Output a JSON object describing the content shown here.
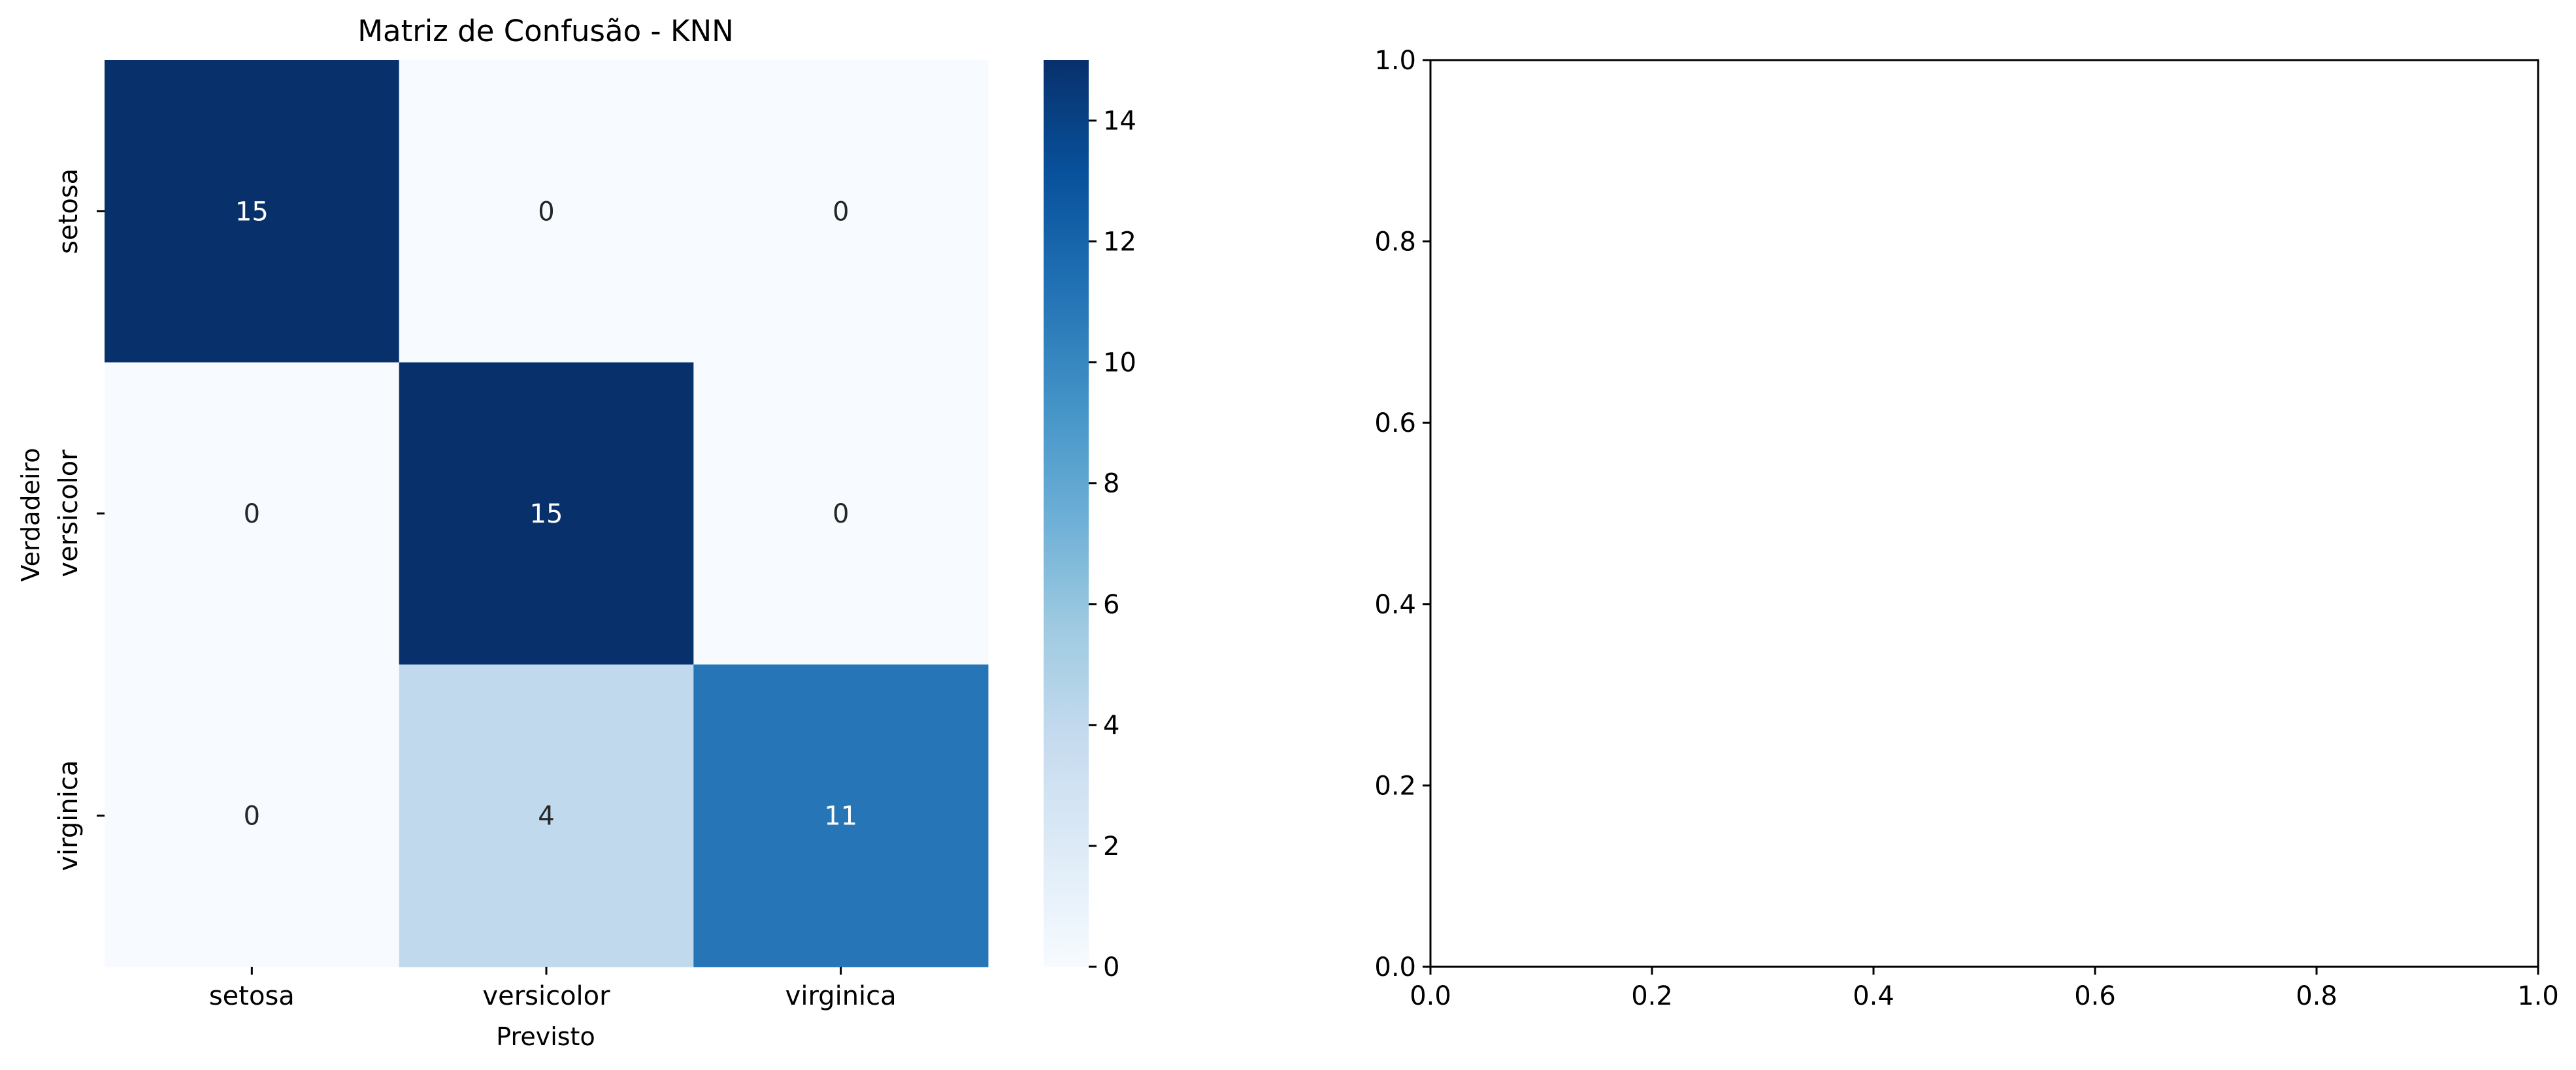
{
  "chart_data": [
    {
      "type": "heatmap",
      "title": "Matriz de Confusão - KNN",
      "xlabel": "Previsto",
      "ylabel": "Verdadeiro",
      "x_categories": [
        "setosa",
        "versicolor",
        "virginica"
      ],
      "y_categories": [
        "setosa",
        "versicolor",
        "virginica"
      ],
      "values": [
        [
          15,
          0,
          0
        ],
        [
          0,
          15,
          0
        ],
        [
          0,
          4,
          11
        ]
      ],
      "colormap": "Blues",
      "colormap_stops": [
        "#f7fbff",
        "#deebf7",
        "#c6dbef",
        "#9ecae1",
        "#6baed6",
        "#4292c6",
        "#2171b5",
        "#08519c",
        "#08306b"
      ],
      "colorbar": {
        "range": [
          0,
          15
        ],
        "ticks": [
          "0",
          "2",
          "4",
          "6",
          "8",
          "10",
          "12",
          "14"
        ]
      },
      "annotations": true
    },
    {
      "type": "scatter",
      "title": "",
      "xlabel": "",
      "ylabel": "",
      "series": [],
      "xlim": [
        0,
        1
      ],
      "ylim": [
        0,
        1
      ],
      "xticks": [
        "0.0",
        "0.2",
        "0.4",
        "0.6",
        "0.8",
        "1.0"
      ],
      "yticks": [
        "0.0",
        "0.2",
        "0.4",
        "0.6",
        "0.8",
        "1.0"
      ],
      "grid": false
    }
  ]
}
